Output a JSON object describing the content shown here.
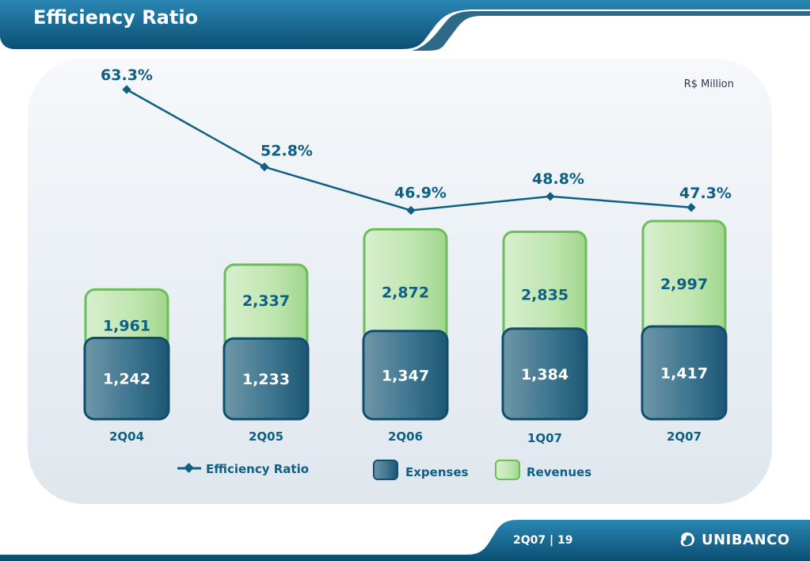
{
  "title": "Efficiency Ratio",
  "unit": "R$ Million",
  "footer": {
    "page": "2Q07 | 19",
    "logo_text": "UNIBANCO"
  },
  "colors": {
    "header": "#0f5f86",
    "expenses": "#2f6f8a",
    "revenues": "#a6dc98",
    "line": "#0d5f84",
    "label": "#0d5f84"
  },
  "chart_data": {
    "type": "bar",
    "categories": [
      "2Q04",
      "2Q05",
      "2Q06",
      "1Q07",
      "2Q07"
    ],
    "series": [
      {
        "name": "Revenues",
        "values": [
          1961,
          2337,
          2872,
          2835,
          2997
        ]
      },
      {
        "name": "Expenses",
        "values": [
          1242,
          1233,
          1347,
          1384,
          1417
        ]
      },
      {
        "name": "Efficiency Ratio",
        "type": "line",
        "values": [
          63.3,
          52.8,
          46.9,
          48.8,
          47.3
        ]
      }
    ],
    "bar_labels": {
      "Revenues": [
        "1,961",
        "2,337",
        "2,872",
        "2,835",
        "2,997"
      ],
      "Expenses": [
        "1,242",
        "1,233",
        "1,347",
        "1,384",
        "1,417"
      ]
    },
    "line_labels": [
      "63.3%",
      "52.8%",
      "46.9%",
      "48.8%",
      "47.3%"
    ],
    "legend": [
      "Efficiency Ratio",
      "Expenses",
      "Revenues"
    ],
    "legend_position": "bottom",
    "grid": false
  }
}
